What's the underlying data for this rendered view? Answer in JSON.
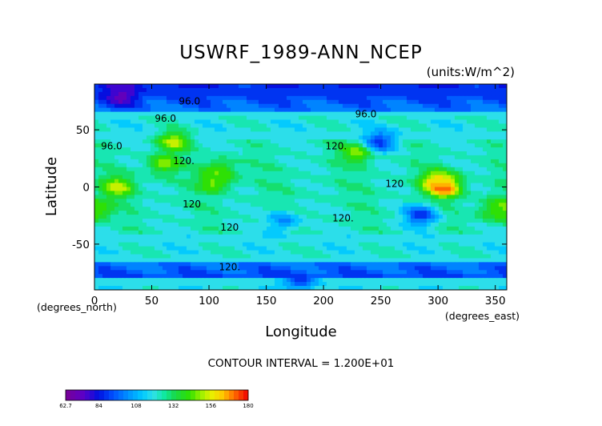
{
  "chart_data": {
    "type": "heatmap",
    "title": "USWRF_1989-ANN_NCEP",
    "units": "(units:W/m^2)",
    "xlabel": "Longitude",
    "ylabel": "Latitude",
    "x_unit_label": "(degrees_east)",
    "y_unit_label": "(degrees_north)",
    "xlim": [
      0,
      360
    ],
    "ylim": [
      -90,
      90
    ],
    "x_ticks": [
      "0",
      "50",
      "100",
      "150",
      "200",
      "250",
      "300",
      "350"
    ],
    "y_ticks": [
      "50",
      "0",
      "-50"
    ],
    "contour_interval_label": "CONTOUR INTERVAL = 1.200E+01",
    "contour_labels": [
      {
        "text": "96.0",
        "lon": 83,
        "lat": 72
      },
      {
        "text": "96.0",
        "lon": 62,
        "lat": 57
      },
      {
        "text": "96.0",
        "lon": 15,
        "lat": 33
      },
      {
        "text": "96.0",
        "lon": 237,
        "lat": 61
      },
      {
        "text": "120.",
        "lon": 211,
        "lat": 33
      },
      {
        "text": "120.",
        "lon": 78,
        "lat": 20
      },
      {
        "text": "120",
        "lon": 262,
        "lat": 0
      },
      {
        "text": "120",
        "lon": 85,
        "lat": -18
      },
      {
        "text": "120",
        "lon": 118,
        "lat": -38
      },
      {
        "text": "120.",
        "lon": 217,
        "lat": -30
      },
      {
        "text": "120.",
        "lon": 118,
        "lat": -73
      }
    ],
    "colorbar": {
      "min": 62.7,
      "max": 180,
      "tick_labels": [
        "62.7",
        "84",
        "108",
        "132",
        "156",
        "180"
      ],
      "tick_values": [
        62.7,
        84,
        108,
        132,
        156,
        180
      ]
    },
    "field_description": "Annual mean upward shortwave radiation flux at surface; low values (~80) at high latitudes, high values (~170-180) over bright deserts around lon 280-330, lat 0 to 10; mostly 108-144 elsewhere",
    "features": [
      {
        "lon": 305,
        "lat": 0,
        "value": 178
      },
      {
        "lon": 300,
        "lat": 5,
        "value": 160
      },
      {
        "lon": 20,
        "lat": 0,
        "value": 152
      },
      {
        "lon": 105,
        "lat": 5,
        "value": 150
      },
      {
        "lon": 110,
        "lat": 15,
        "value": 145
      },
      {
        "lon": 60,
        "lat": 20,
        "value": 148
      },
      {
        "lon": 70,
        "lat": 40,
        "value": 150
      },
      {
        "lon": 230,
        "lat": 30,
        "value": 150
      },
      {
        "lon": 0,
        "lat": -20,
        "value": 150
      },
      {
        "lon": 350,
        "lat": -20,
        "value": 145
      },
      {
        "lon": 25,
        "lat": 80,
        "value": 72
      },
      {
        "lon": 140,
        "lat": 85,
        "value": 90
      },
      {
        "lon": 330,
        "lat": 85,
        "value": 88
      },
      {
        "lon": 250,
        "lat": 40,
        "value": 92
      },
      {
        "lon": 285,
        "lat": -25,
        "value": 90
      },
      {
        "lon": 165,
        "lat": -30,
        "value": 100
      },
      {
        "lon": 180,
        "lat": -82,
        "value": 90
      }
    ]
  }
}
